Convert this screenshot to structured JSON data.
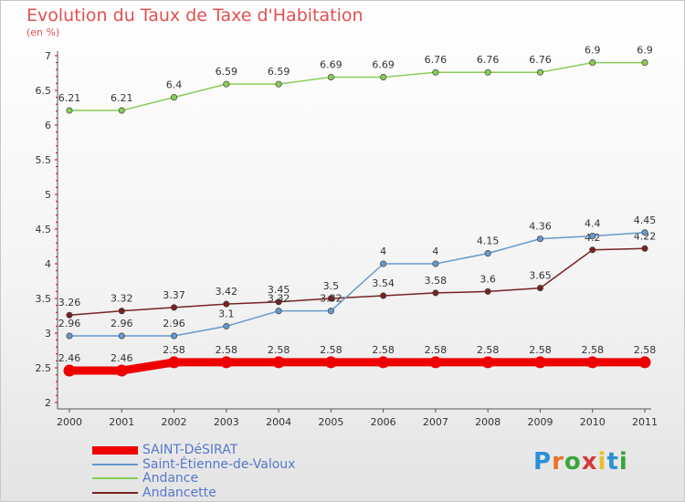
{
  "title": "Evolution du Taux de Taxe d'Habitation",
  "unit_label": "(en %)",
  "brand": {
    "chars": [
      "P",
      "r",
      "o",
      "x",
      "i",
      "t",
      "i"
    ],
    "colors": [
      "#2a8fd6",
      "#e8732a",
      "#3aa53a",
      "#d63a3a",
      "#e8c02a",
      "#2a8fd6",
      "#3aa53a"
    ]
  },
  "chart_data": {
    "type": "line",
    "title": "Evolution du Taux de Taxe d'Habitation",
    "ylabel": "(en %)",
    "xlabel": "",
    "x": [
      "2000",
      "2001",
      "2002",
      "2003",
      "2004",
      "2005",
      "2006",
      "2007",
      "2008",
      "2009",
      "2010",
      "2011"
    ],
    "ylim": [
      2,
      7
    ],
    "y_ticks": [
      "2",
      "2.5",
      "3",
      "3.5",
      "4",
      "4.5",
      "5",
      "5.5",
      "6",
      "6.5",
      "7"
    ],
    "grid": false,
    "legend_position": "bottom-left",
    "series": [
      {
        "name": "SAINT-DéSIRAT",
        "color": "#ee0000",
        "values": [
          2.46,
          2.46,
          2.58,
          2.58,
          2.58,
          2.58,
          2.58,
          2.58,
          2.58,
          2.58,
          2.58,
          2.58
        ],
        "labels": [
          "2.46",
          "2.46",
          "2.58",
          "2.58",
          "2.58",
          "2.58",
          "2.58",
          "2.58",
          "2.58",
          "2.58",
          "2.58",
          "2.58"
        ]
      },
      {
        "name": "Saint-Étienne-de-Valoux",
        "color": "#6699cc",
        "values": [
          2.96,
          2.96,
          2.96,
          3.1,
          3.32,
          3.32,
          4,
          4,
          4.15,
          4.36,
          4.4,
          4.45
        ],
        "labels": [
          "2.96",
          "2.96",
          "2.96",
          "3.1",
          "3.32",
          "3.32",
          "4",
          "4",
          "4.15",
          "4.36",
          "4.4",
          "4.45"
        ]
      },
      {
        "name": "Andance",
        "color": "#88cc55",
        "values": [
          6.21,
          6.21,
          6.4,
          6.59,
          6.59,
          6.69,
          6.69,
          6.76,
          6.76,
          6.76,
          6.9,
          6.9
        ],
        "labels": [
          "6.21",
          "6.21",
          "6.4",
          "6.59",
          "6.59",
          "6.69",
          "6.69",
          "6.76",
          "6.76",
          "6.76",
          "6.9",
          "6.9"
        ]
      },
      {
        "name": "Andancette",
        "color": "#772222",
        "values": [
          3.26,
          3.32,
          3.37,
          3.42,
          3.45,
          3.5,
          3.54,
          3.58,
          3.6,
          3.65,
          4.2,
          4.22
        ],
        "labels": [
          "3.26",
          "3.32",
          "3.37",
          "3.42",
          "3.45",
          "3.5",
          "3.54",
          "3.58",
          "3.6",
          "3.65",
          "4.2",
          "4.22"
        ]
      }
    ]
  }
}
